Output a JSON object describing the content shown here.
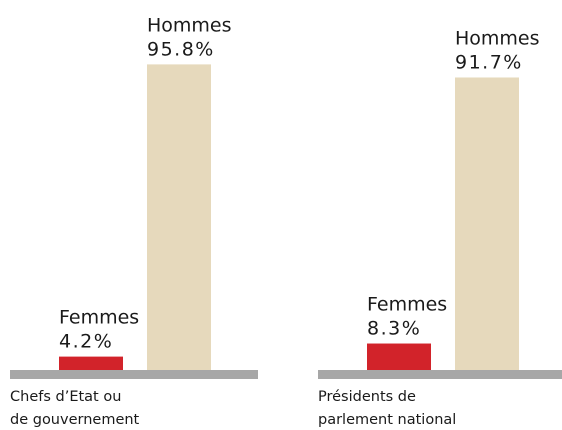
{
  "chart_data": [
    {
      "type": "bar",
      "categories": [
        "Femmes",
        "Hommes"
      ],
      "values": [
        4.2,
        95.8
      ],
      "value_labels": [
        "4.2%",
        "95.8%"
      ],
      "colors": [
        "#d2232a",
        "#e6d9bc"
      ],
      "xlabel": [
        "Chefs d’Etat ou",
        "de gouvernement"
      ]
    },
    {
      "type": "bar",
      "categories": [
        "Femmes",
        "Hommes"
      ],
      "values": [
        8.3,
        91.7
      ],
      "value_labels": [
        "8.3%",
        "91.7%"
      ],
      "colors": [
        "#d2232a",
        "#e6d9bc"
      ],
      "xlabel": [
        "Présidents de",
        "parlement national"
      ]
    }
  ]
}
